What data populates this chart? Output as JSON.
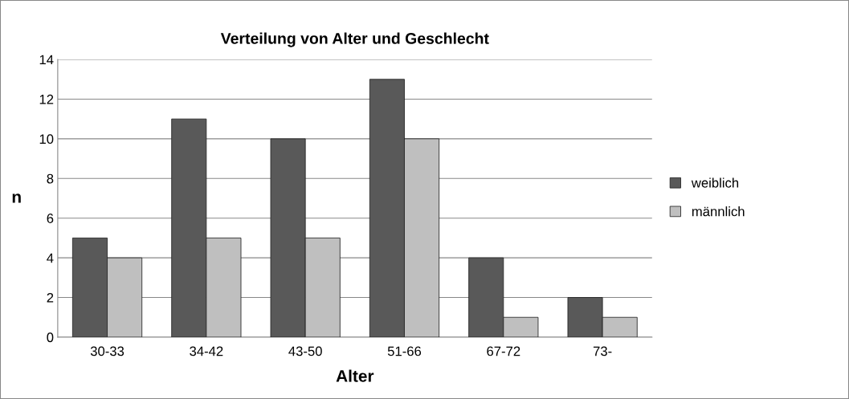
{
  "chart_data": {
    "type": "bar",
    "title": "Verteilung von Alter und Geschlecht",
    "xlabel": "Alter",
    "ylabel": "n",
    "categories": [
      "30-33",
      "34-42",
      "43-50",
      "51-66",
      "67-72",
      "73-"
    ],
    "series": [
      {
        "name": "weiblich",
        "color": "#595959",
        "values": [
          5,
          11,
          10,
          13,
          4,
          2
        ]
      },
      {
        "name": "männlich",
        "color": "#bfbfbf",
        "values": [
          4,
          5,
          5,
          10,
          1,
          1
        ]
      }
    ],
    "ylim": [
      0,
      14
    ],
    "yticks": [
      0,
      2,
      4,
      6,
      8,
      10,
      12,
      14
    ],
    "grid": "y",
    "legend": "right"
  }
}
